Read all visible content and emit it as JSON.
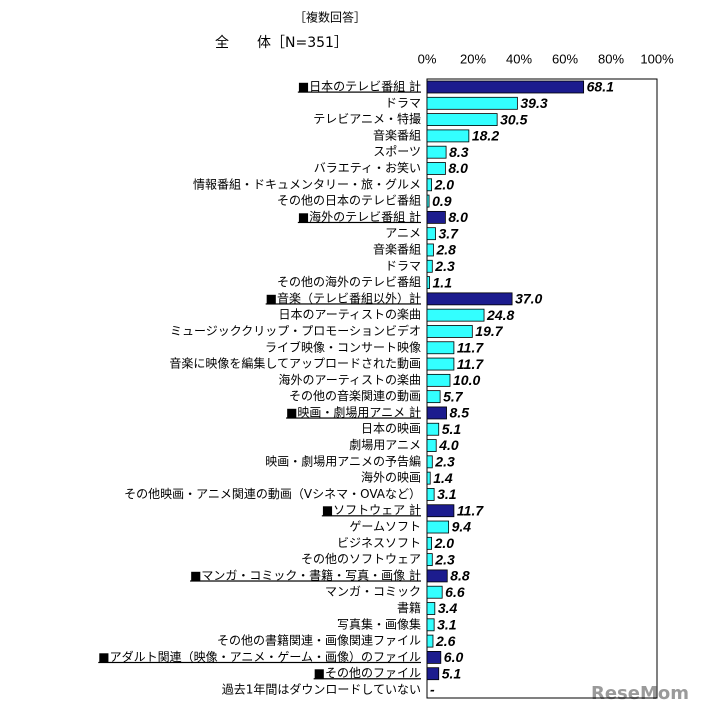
{
  "chart_data": {
    "type": "barh",
    "note": "［複数回答］",
    "title": "全　　体［N=351］",
    "watermark": "ReseMom",
    "categories": [
      "■日本のテレビ番組 計",
      "ドラマ",
      "テレビアニメ・特撮",
      "音楽番組",
      "スポーツ",
      "バラエティ・お笑い",
      "情報番組・ドキュメンタリー・旅・グルメ",
      "その他の日本のテレビ番組",
      "■海外のテレビ番組 計",
      "アニメ",
      "音楽番組",
      "ドラマ",
      "その他の海外のテレビ番組",
      "■音楽（テレビ番組以外）計",
      "日本のアーティストの楽曲",
      "ミュージッククリップ・プロモーションビデオ",
      "ライブ映像・コンサート映像",
      "音楽に映像を編集してアップロードされた動画",
      "海外のアーティストの楽曲",
      "その他の音楽関連の動画",
      "■映画・劇場用アニメ 計",
      "日本の映画",
      "劇場用アニメ",
      "映画・劇場用アニメの予告編",
      "海外の映画",
      "その他映画・アニメ関連の動画（Vシネマ・OVAなど）",
      "■ソフトウェア 計",
      "ゲームソフト",
      "ビジネスソフト",
      "その他のソフトウェア",
      "■マンガ・コミック・書籍・写真・画像 計",
      "マンガ・コミック",
      "書籍",
      "写真集・画像集",
      "その他の書籍関連・画像関連ファイル",
      "■アダルト関連（映像・アニメ・ゲーム・画像）のファイル",
      "■その他のファイル",
      "過去1年間はダウンロードしていない"
    ],
    "values": [
      68.1,
      39.3,
      30.5,
      18.2,
      8.3,
      8.0,
      2.0,
      0.9,
      8.0,
      3.7,
      2.8,
      2.3,
      1.1,
      37.0,
      24.8,
      19.7,
      11.7,
      11.7,
      10.0,
      5.7,
      8.5,
      5.1,
      4.0,
      2.3,
      1.4,
      3.1,
      11.7,
      9.4,
      2.0,
      2.3,
      8.8,
      6.6,
      3.4,
      3.1,
      2.6,
      6.0,
      5.1,
      null
    ],
    "value_labels": [
      "68.1",
      "39.3",
      "30.5",
      "18.2",
      "8.3",
      "8.0",
      "2.0",
      "0.9",
      "8.0",
      "3.7",
      "2.8",
      "2.3",
      "1.1",
      "37.0",
      "24.8",
      "19.7",
      "11.7",
      "11.7",
      "10.0",
      "5.7",
      "8.5",
      "5.1",
      "4.0",
      "2.3",
      "1.4",
      "3.1",
      "11.7",
      "9.4",
      "2.0",
      "2.3",
      "8.8",
      "6.6",
      "3.4",
      "3.1",
      "2.6",
      "6.0",
      "5.1",
      "-"
    ],
    "colors": [
      "#1c1c8e",
      "#33ffff",
      "#33ffff",
      "#33ffff",
      "#33ffff",
      "#33ffff",
      "#33ffff",
      "#33ffff",
      "#1c1c8e",
      "#33ffff",
      "#33ffff",
      "#33ffff",
      "#33ffff",
      "#1c1c8e",
      "#33ffff",
      "#33ffff",
      "#33ffff",
      "#33ffff",
      "#33ffff",
      "#33ffff",
      "#1c1c8e",
      "#33ffff",
      "#33ffff",
      "#33ffff",
      "#33ffff",
      "#33ffff",
      "#1c1c8e",
      "#33ffff",
      "#33ffff",
      "#33ffff",
      "#1c1c8e",
      "#33ffff",
      "#33ffff",
      "#33ffff",
      "#33ffff",
      "#1c1c8e",
      "#1c1c8e",
      "#33ffff"
    ],
    "xlim": [
      0,
      100
    ],
    "xticks": [
      {
        "value": 0,
        "label": "0%"
      },
      {
        "value": 20,
        "label": "20%"
      },
      {
        "value": 40,
        "label": "40%"
      },
      {
        "value": 60,
        "label": "60%"
      },
      {
        "value": 80,
        "label": "80%"
      },
      {
        "value": 100,
        "label": "100%"
      }
    ]
  }
}
